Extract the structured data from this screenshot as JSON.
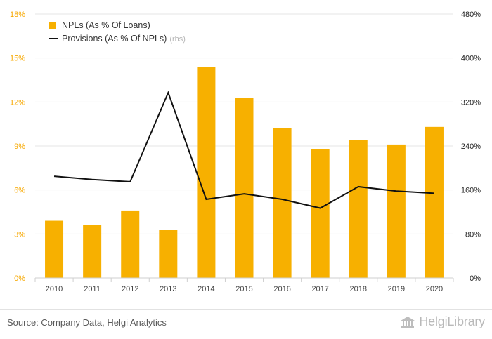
{
  "chart_data": {
    "type": "bar+line",
    "title": "",
    "categories": [
      "2010",
      "2011",
      "2012",
      "2013",
      "2014",
      "2015",
      "2016",
      "2017",
      "2018",
      "2019",
      "2020"
    ],
    "series": [
      {
        "name": "NPLs (As % Of Loans)",
        "type": "bar",
        "axis": "left",
        "color": "#f7b000",
        "values": [
          3.9,
          3.6,
          4.6,
          3.3,
          14.4,
          12.3,
          10.2,
          8.8,
          9.4,
          9.1,
          10.3
        ]
      },
      {
        "name": "Provisions (As % Of NPLs)",
        "suffix": "(rhs)",
        "type": "line",
        "axis": "right",
        "color": "#111111",
        "values": [
          185,
          179,
          175,
          337,
          143,
          153,
          143,
          127,
          166,
          158,
          154
        ]
      }
    ],
    "y_left": {
      "min": 0,
      "max": 18,
      "ticks": [
        "0%",
        "3%",
        "6%",
        "9%",
        "12%",
        "15%",
        "18%"
      ],
      "tick_values": [
        0,
        3,
        6,
        9,
        12,
        15,
        18
      ]
    },
    "y_right": {
      "min": 0,
      "max": 480,
      "ticks": [
        "0%",
        "80%",
        "160%",
        "240%",
        "320%",
        "400%",
        "480%"
      ],
      "tick_values": [
        0,
        80,
        160,
        240,
        320,
        400,
        480
      ]
    },
    "legend_position": "top-left",
    "grid": true
  },
  "footer": {
    "source": "Source: Company Data, Helgi Analytics",
    "brand": "HelgiLibrary",
    "brand_parts": {
      "first": "Helgi",
      "second": "Library"
    }
  },
  "colors": {
    "axis_text_left": "#f7a800",
    "axis_text_right": "#222222",
    "grid": "#e6e6e6"
  }
}
